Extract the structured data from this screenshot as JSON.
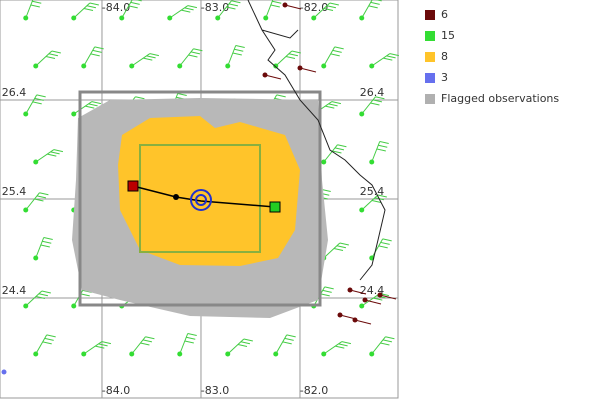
{
  "map": {
    "lon_range": [
      -85.03,
      -81.01
    ],
    "lat_range": [
      27.41,
      23.39
    ],
    "lon_ticks": [
      {
        "value": -84,
        "label": "-84.0"
      },
      {
        "value": -83,
        "label": "-83.0"
      },
      {
        "value": -82,
        "label": "-82.0"
      }
    ],
    "lat_ticks": [
      {
        "value": 26.4,
        "label": "26.4"
      },
      {
        "value": 25.4,
        "label": "25.4"
      },
      {
        "value": 24.4,
        "label": "24.4"
      }
    ]
  },
  "legend": [
    {
      "label": "6",
      "color": "#6b0a0a"
    },
    {
      "label": "15",
      "color": "#33dd33"
    },
    {
      "label": "8",
      "color": "#ffc42a"
    },
    {
      "label": "3",
      "color": "#6670ee"
    },
    {
      "label": "Flagged observations",
      "color": "#b0b0b0"
    }
  ]
}
